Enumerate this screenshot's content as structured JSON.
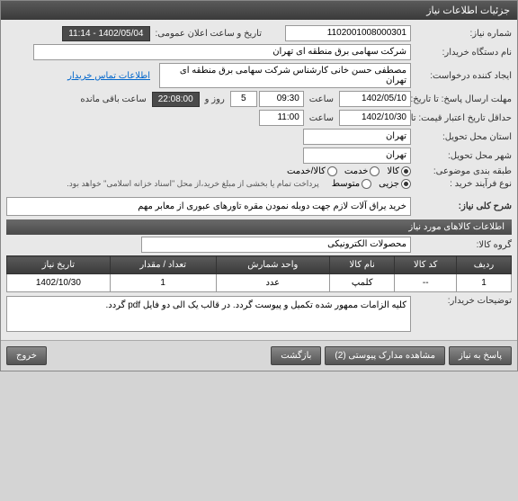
{
  "title": "جزئیات اطلاعات نیاز",
  "labels": {
    "need_no": "شماره نیاز:",
    "buyer_org": "نام دستگاه خریدار:",
    "requester": "ایجاد کننده درخواست:",
    "deadline": "مهلت ارسال پاسخ: تا تاریخ:",
    "valid_from": "حداقل تاریخ اعتبار قیمت: تا تاریخ:",
    "loc": "استان محل تحویل:",
    "city": "شهر محل تحویل:",
    "cat": "طبقه بندی موضوعی:",
    "proc_type": "نوع فرآیند خرید :",
    "announce": "تاریخ و ساعت اعلان عمومی:",
    "time": "ساعت",
    "day_hour": "روز و",
    "remain": "ساعت باقی مانده",
    "contact": "اطلاعات تماس خریدار",
    "desc_title": "شرح کلی نیاز:",
    "items_title": "اطلاعات کالاهای مورد نیاز",
    "goods_group": "گروه کالا:",
    "buyer_notes": "توضیحات خریدار:"
  },
  "fields": {
    "need_no": "1102001008000301",
    "buyer_org": "شرکت سهامی برق منطقه ای تهران",
    "requester": "مصطفی حسن خانی  کارشناس شرکت سهامی برق منطقه ای تهران",
    "announce": "1402/05/04 - 11:14",
    "deadline_date": "1402/05/10",
    "deadline_time": "09:30",
    "days": "5",
    "remain_time": "22:08:00",
    "valid_date": "1402/10/30",
    "valid_time": "11:00",
    "loc": "تهران",
    "city": "تهران",
    "goods_group": "محصولات الکترونیکی",
    "desc": "خرید یراق آلات لازم جهت دوبله نمودن مقره تاورهای عبوری از معابر مهم",
    "notes": "کلیه الزامات ممهور شده تکمیل و پیوست گردد. در قالب یک الی دو فایل pdf گردد."
  },
  "radios": {
    "cat": [
      {
        "label": "کالا",
        "checked": true
      },
      {
        "label": "خدمت",
        "checked": false
      },
      {
        "label": "کالا/خدمت",
        "checked": false
      }
    ],
    "proc": [
      {
        "label": "جزیی",
        "checked": true
      },
      {
        "label": "متوسط",
        "checked": false
      }
    ]
  },
  "proc_note": "پرداخت تمام یا بخشی از مبلغ خرید،از محل \"اسناد خزانه اسلامی\" خواهد بود.",
  "cols": [
    "ردیف",
    "کد کالا",
    "نام کالا",
    "واحد شمارش",
    "تعداد / مقدار",
    "تاریخ نیاز"
  ],
  "rows": [
    {
      "n": "1",
      "code": "--",
      "name": "کلمپ",
      "unit": "عدد",
      "qty": "1",
      "date": "1402/10/30"
    }
  ],
  "buttons": {
    "reply": "پاسخ به نیاز",
    "attach": "مشاهده مدارک پیوستی (2)",
    "back": "بازگشت",
    "exit": "خروج"
  }
}
